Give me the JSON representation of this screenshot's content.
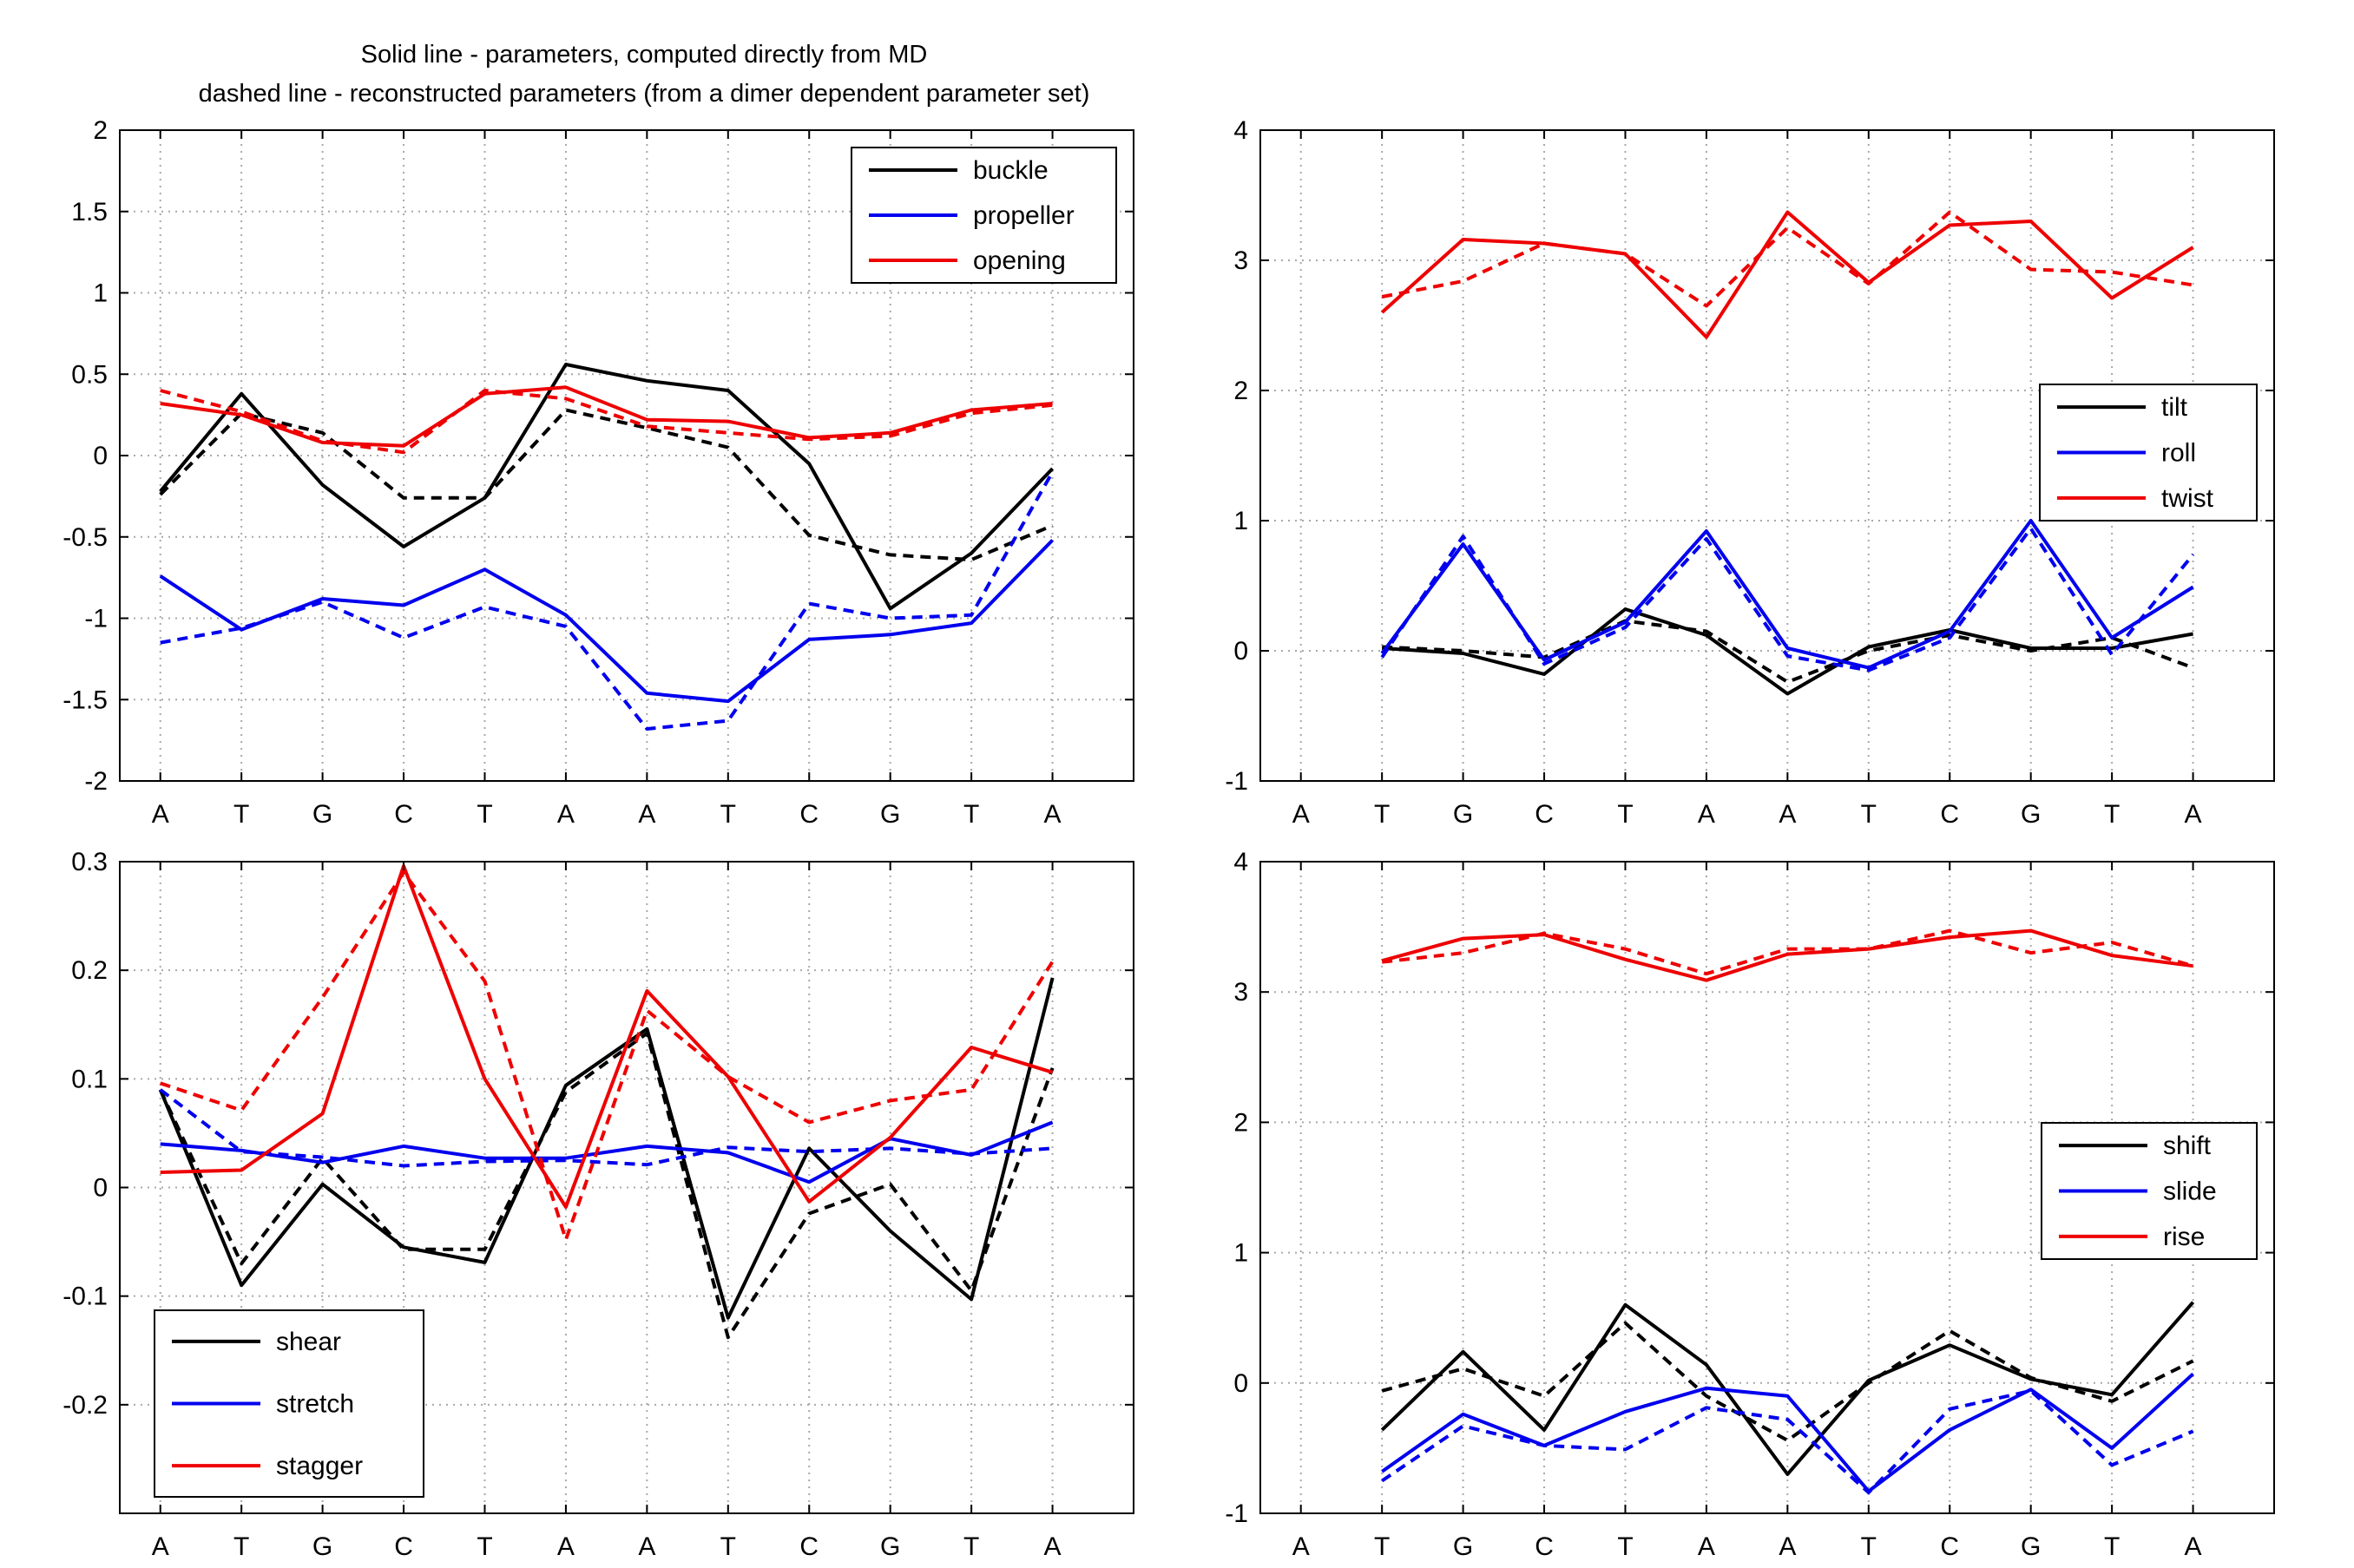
{
  "figure_title": [
    "Solid line - parameters, computed directly from MD",
    "dashed line - reconstructed parameters (from a dimer dependent parameter set)"
  ],
  "colors": {
    "black": "#000000",
    "blue": "#0000ee",
    "red": "#ee0000"
  },
  "chart_data": [
    {
      "type": "line",
      "title": "Solid line - parameters, computed directly from MD / dashed line - reconstructed parameters (from a dimer dependent parameter set)",
      "xlabel": "",
      "ylabel": "",
      "categories": [
        "A",
        "T",
        "G",
        "C",
        "T",
        "A",
        "A",
        "T",
        "C",
        "G",
        "T",
        "A"
      ],
      "ylim": [
        -2,
        2
      ],
      "yticks": [
        -2,
        -1.5,
        -1,
        -0.5,
        0,
        0.5,
        1,
        1.5,
        2
      ],
      "ytick_labels": [
        "-2",
        "-1.5",
        "-1",
        "-0.5",
        "0",
        "0.5",
        "1",
        "1.5",
        "2"
      ],
      "grid": true,
      "legend_position": "top-right",
      "legend": [
        "buckle",
        "propeller",
        "opening"
      ],
      "series": [
        {
          "name": "buckle",
          "color": "black",
          "style": "solid",
          "x": [
            1,
            2,
            3,
            4,
            5,
            6,
            7,
            8,
            9,
            10,
            11,
            12
          ],
          "values": [
            -0.22,
            0.38,
            -0.18,
            -0.56,
            -0.26,
            0.56,
            0.46,
            0.4,
            -0.05,
            -0.94,
            -0.6,
            -0.08
          ]
        },
        {
          "name": "buckle",
          "color": "black",
          "style": "dashed",
          "x": [
            1,
            2,
            3,
            4,
            5,
            6,
            7,
            8,
            9,
            10,
            11,
            12
          ],
          "values": [
            -0.24,
            0.26,
            0.14,
            -0.26,
            -0.26,
            0.28,
            0.17,
            0.05,
            -0.49,
            -0.61,
            -0.64,
            -0.43
          ]
        },
        {
          "name": "propeller",
          "color": "blue",
          "style": "solid",
          "x": [
            1,
            2,
            3,
            4,
            5,
            6,
            7,
            8,
            9,
            10,
            11,
            12
          ],
          "values": [
            -0.74,
            -1.07,
            -0.88,
            -0.92,
            -0.7,
            -0.98,
            -1.46,
            -1.51,
            -1.13,
            -1.1,
            -1.03,
            -0.52
          ]
        },
        {
          "name": "propeller",
          "color": "blue",
          "style": "dashed",
          "x": [
            1,
            2,
            3,
            4,
            5,
            6,
            7,
            8,
            9,
            10,
            11,
            12
          ],
          "values": [
            -1.15,
            -1.06,
            -0.9,
            -1.12,
            -0.93,
            -1.05,
            -1.68,
            -1.63,
            -0.91,
            -1.0,
            -0.98,
            -0.1
          ]
        },
        {
          "name": "opening",
          "color": "red",
          "style": "solid",
          "x": [
            1,
            2,
            3,
            4,
            5,
            6,
            7,
            8,
            9,
            10,
            11,
            12
          ],
          "values": [
            0.32,
            0.25,
            0.08,
            0.06,
            0.38,
            0.42,
            0.22,
            0.21,
            0.11,
            0.14,
            0.28,
            0.32
          ]
        },
        {
          "name": "opening",
          "color": "red",
          "style": "dashed",
          "x": [
            1,
            2,
            3,
            4,
            5,
            6,
            7,
            8,
            9,
            10,
            11,
            12
          ],
          "values": [
            0.4,
            0.27,
            0.09,
            0.02,
            0.4,
            0.35,
            0.18,
            0.14,
            0.1,
            0.12,
            0.26,
            0.31
          ]
        }
      ]
    },
    {
      "type": "line",
      "title": "",
      "xlabel": "",
      "ylabel": "",
      "categories": [
        "A",
        "T",
        "G",
        "C",
        "T",
        "A",
        "A",
        "T",
        "C",
        "G",
        "T",
        "A"
      ],
      "ylim": [
        -1,
        4
      ],
      "yticks": [
        -1,
        0,
        1,
        2,
        3,
        4
      ],
      "ytick_labels": [
        "-1",
        "0",
        "1",
        "2",
        "3",
        "4"
      ],
      "grid": true,
      "legend_position": "middle-right",
      "legend": [
        "tilt",
        "roll",
        "twist"
      ],
      "series": [
        {
          "name": "tilt",
          "color": "black",
          "style": "solid",
          "x": [
            2,
            3,
            4,
            5,
            6,
            7,
            8,
            9,
            10,
            11,
            12
          ],
          "values": [
            0.02,
            -0.02,
            -0.18,
            0.32,
            0.12,
            -0.33,
            0.03,
            0.16,
            0.02,
            0.02,
            0.13
          ]
        },
        {
          "name": "tilt",
          "color": "black",
          "style": "dashed",
          "x": [
            2,
            3,
            4,
            5,
            6,
            7,
            8,
            9,
            10,
            11,
            12
          ],
          "values": [
            0.03,
            0.0,
            -0.05,
            0.23,
            0.15,
            -0.24,
            0.0,
            0.12,
            0.0,
            0.1,
            -0.13
          ]
        },
        {
          "name": "roll",
          "color": "blue",
          "style": "solid",
          "x": [
            2,
            3,
            4,
            5,
            6,
            7,
            8,
            9,
            10,
            11,
            12
          ],
          "values": [
            -0.02,
            0.82,
            -0.07,
            0.22,
            0.92,
            0.02,
            -0.13,
            0.15,
            1.0,
            0.1,
            0.49
          ]
        },
        {
          "name": "roll",
          "color": "blue",
          "style": "dashed",
          "x": [
            2,
            3,
            4,
            5,
            6,
            7,
            8,
            9,
            10,
            11,
            12
          ],
          "values": [
            -0.05,
            0.88,
            -0.1,
            0.18,
            0.86,
            -0.04,
            -0.15,
            0.1,
            0.94,
            -0.03,
            0.74
          ]
        },
        {
          "name": "twist",
          "color": "red",
          "style": "solid",
          "x": [
            2,
            3,
            4,
            5,
            6,
            7,
            8,
            9,
            10,
            11,
            12
          ],
          "values": [
            2.6,
            3.16,
            3.13,
            3.05,
            2.41,
            3.37,
            2.83,
            3.27,
            3.3,
            2.71,
            3.1
          ]
        },
        {
          "name": "twist",
          "color": "red",
          "style": "dashed",
          "x": [
            2,
            3,
            4,
            5,
            6,
            7,
            8,
            9,
            10,
            11,
            12
          ],
          "values": [
            2.72,
            2.84,
            3.13,
            3.05,
            2.65,
            3.25,
            2.82,
            3.37,
            2.93,
            2.91,
            2.81
          ]
        }
      ]
    },
    {
      "type": "line",
      "title": "",
      "xlabel": "",
      "ylabel": "",
      "categories": [
        "A",
        "T",
        "G",
        "C",
        "T",
        "A",
        "A",
        "T",
        "C",
        "G",
        "T",
        "A"
      ],
      "ylim": [
        -0.3,
        0.3
      ],
      "yticks": [
        -0.2,
        -0.1,
        0,
        0.1,
        0.2,
        0.3
      ],
      "ytick_labels": [
        "-0.2",
        "-0.1",
        "0",
        "0.1",
        "0.2",
        "0.3"
      ],
      "grid": true,
      "legend_position": "bottom-left",
      "legend": [
        "shear",
        "stretch",
        "stagger"
      ],
      "series": [
        {
          "name": "shear",
          "color": "black",
          "style": "solid",
          "x": [
            1,
            2,
            3,
            4,
            5,
            6,
            7,
            8,
            9,
            10,
            11,
            12
          ],
          "values": [
            0.09,
            -0.09,
            0.003,
            -0.055,
            -0.069,
            0.094,
            0.146,
            -0.12,
            0.036,
            -0.04,
            -0.103,
            0.193
          ]
        },
        {
          "name": "shear",
          "color": "black",
          "style": "dashed",
          "x": [
            1,
            2,
            3,
            4,
            5,
            6,
            7,
            8,
            9,
            10,
            11,
            12
          ],
          "values": [
            0.09,
            -0.07,
            0.027,
            -0.057,
            -0.057,
            0.088,
            0.142,
            -0.138,
            -0.024,
            0.003,
            -0.095,
            0.11
          ]
        },
        {
          "name": "stretch",
          "color": "blue",
          "style": "solid",
          "x": [
            1,
            2,
            3,
            4,
            5,
            6,
            7,
            8,
            9,
            10,
            11,
            12
          ],
          "values": [
            0.04,
            0.034,
            0.023,
            0.038,
            0.027,
            0.027,
            0.038,
            0.032,
            0.005,
            0.045,
            0.03,
            0.06
          ]
        },
        {
          "name": "stretch",
          "color": "blue",
          "style": "dashed",
          "x": [
            1,
            2,
            3,
            4,
            5,
            6,
            7,
            8,
            9,
            10,
            11,
            12
          ],
          "values": [
            0.09,
            0.033,
            0.028,
            0.02,
            0.024,
            0.025,
            0.021,
            0.037,
            0.033,
            0.036,
            0.031,
            0.036
          ]
        },
        {
          "name": "stagger",
          "color": "red",
          "style": "solid",
          "x": [
            1,
            2,
            3,
            4,
            5,
            6,
            7,
            8,
            9,
            10,
            11,
            12
          ],
          "values": [
            0.014,
            0.016,
            0.068,
            0.296,
            0.1,
            -0.018,
            0.181,
            0.102,
            -0.013,
            0.046,
            0.129,
            0.106
          ]
        },
        {
          "name": "stagger",
          "color": "red",
          "style": "dashed",
          "x": [
            1,
            2,
            3,
            4,
            5,
            6,
            7,
            8,
            9,
            10,
            11,
            12
          ],
          "values": [
            0.096,
            0.071,
            0.175,
            0.29,
            0.19,
            -0.048,
            0.163,
            0.102,
            0.06,
            0.08,
            0.09,
            0.208
          ]
        }
      ]
    },
    {
      "type": "line",
      "title": "",
      "xlabel": "",
      "ylabel": "",
      "categories": [
        "A",
        "T",
        "G",
        "C",
        "T",
        "A",
        "A",
        "T",
        "C",
        "G",
        "T",
        "A"
      ],
      "ylim": [
        -1,
        4
      ],
      "yticks": [
        -1,
        0,
        1,
        2,
        3,
        4
      ],
      "ytick_labels": [
        "-1",
        "0",
        "1",
        "2",
        "3",
        "4"
      ],
      "grid": true,
      "legend_position": "middle-right",
      "legend": [
        "shift",
        "slide",
        "rise"
      ],
      "series": [
        {
          "name": "shift",
          "color": "black",
          "style": "solid",
          "x": [
            2,
            3,
            4,
            5,
            6,
            7,
            8,
            9,
            10,
            11,
            12
          ],
          "values": [
            -0.36,
            0.24,
            -0.36,
            0.6,
            0.14,
            -0.7,
            0.02,
            0.29,
            0.03,
            -0.09,
            0.62
          ]
        },
        {
          "name": "shift",
          "color": "black",
          "style": "dashed",
          "x": [
            2,
            3,
            4,
            5,
            6,
            7,
            8,
            9,
            10,
            11,
            12
          ],
          "values": [
            -0.06,
            0.11,
            -0.1,
            0.46,
            -0.1,
            -0.44,
            0.0,
            0.4,
            0.04,
            -0.14,
            0.17
          ]
        },
        {
          "name": "slide",
          "color": "blue",
          "style": "solid",
          "x": [
            2,
            3,
            4,
            5,
            6,
            7,
            8,
            9,
            10,
            11,
            12
          ],
          "values": [
            -0.68,
            -0.24,
            -0.48,
            -0.22,
            -0.04,
            -0.1,
            -0.83,
            -0.36,
            -0.05,
            -0.5,
            0.07
          ]
        },
        {
          "name": "slide",
          "color": "blue",
          "style": "dashed",
          "x": [
            2,
            3,
            4,
            5,
            6,
            7,
            8,
            9,
            10,
            11,
            12
          ],
          "values": [
            -0.75,
            -0.33,
            -0.48,
            -0.51,
            -0.19,
            -0.28,
            -0.84,
            -0.2,
            -0.06,
            -0.63,
            -0.37
          ]
        },
        {
          "name": "rise",
          "color": "red",
          "style": "solid",
          "x": [
            2,
            3,
            4,
            5,
            6,
            7,
            8,
            9,
            10,
            11,
            12
          ],
          "values": [
            3.24,
            3.41,
            3.44,
            3.25,
            3.09,
            3.29,
            3.33,
            3.42,
            3.47,
            3.28,
            3.2
          ]
        },
        {
          "name": "rise",
          "color": "red",
          "style": "dashed",
          "x": [
            2,
            3,
            4,
            5,
            6,
            7,
            8,
            9,
            10,
            11,
            12
          ],
          "values": [
            3.23,
            3.3,
            3.45,
            3.33,
            3.14,
            3.33,
            3.33,
            3.47,
            3.3,
            3.38,
            3.2
          ]
        }
      ]
    }
  ]
}
